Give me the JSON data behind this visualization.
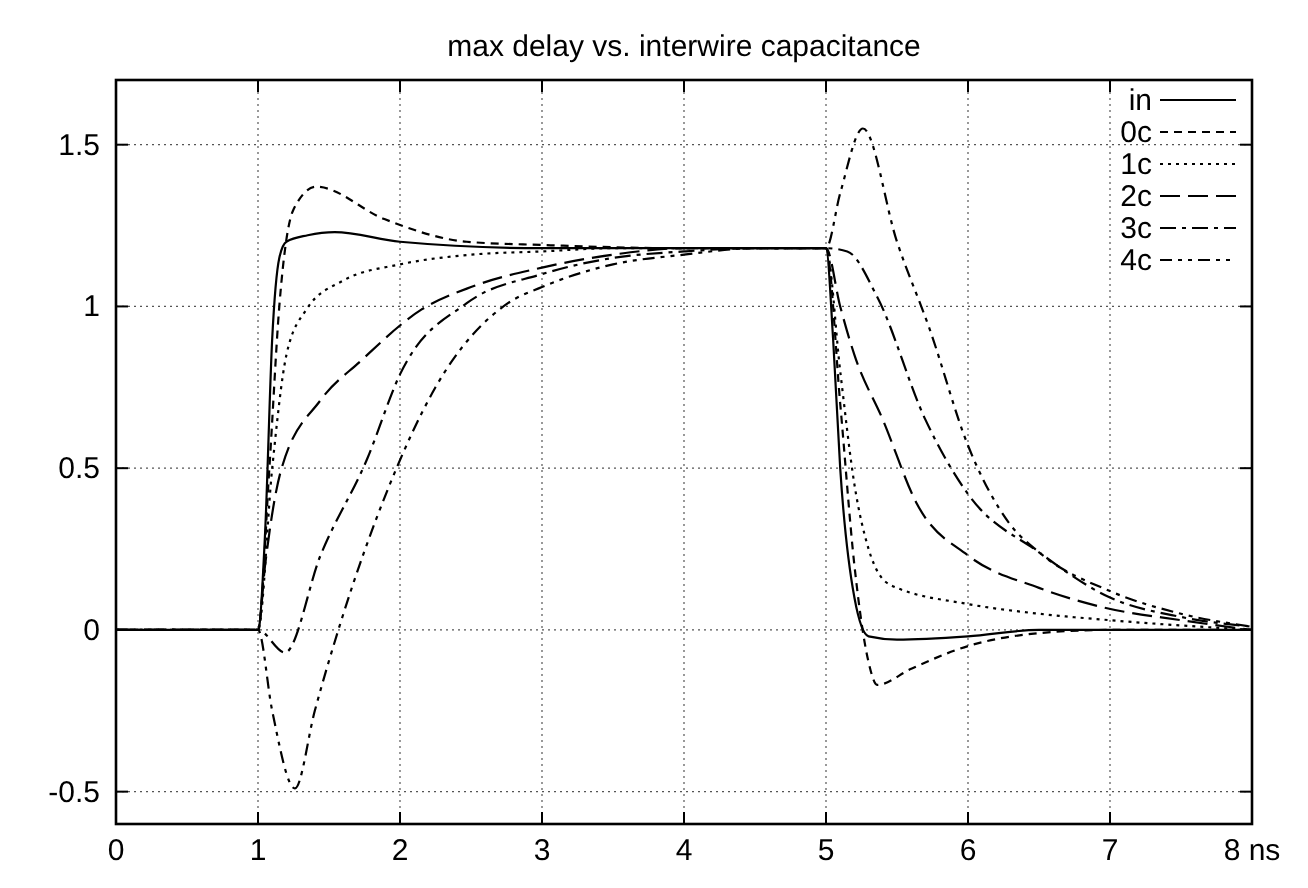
{
  "chart_data": {
    "type": "line",
    "title": "max delay vs. interwire capacitance",
    "xlim": [
      0,
      8
    ],
    "ylim": [
      -0.6,
      1.7
    ],
    "xticks": [
      0,
      1,
      2,
      3,
      4,
      5,
      6,
      7,
      {
        "value": 8,
        "label": "8 ns"
      }
    ],
    "yticks": [
      -0.5,
      0,
      0.5,
      1,
      1.5
    ],
    "grid": true,
    "legend": "top right",
    "series": [
      {
        "name": "in",
        "color": "#000000",
        "line_style": "solid",
        "x": [
          0,
          1,
          1.05,
          1.1,
          1.15,
          1.2,
          1.35,
          1.54,
          2,
          3,
          4,
          5,
          5.05,
          5.1,
          5.2,
          5.3,
          5.5,
          6,
          6.5,
          7,
          8
        ],
        "values": [
          0,
          0,
          0.3,
          0.9,
          1.15,
          1.2,
          1.22,
          1.23,
          1.2,
          1.18,
          1.18,
          1.18,
          0.9,
          0.5,
          0.1,
          -0.02,
          -0.03,
          -0.02,
          0,
          0,
          0
        ]
      },
      {
        "name": "0c",
        "color": "#000000",
        "line_style": "dashed",
        "x": [
          0,
          1,
          1.08,
          1.15,
          1.25,
          1.41,
          1.89,
          2.47,
          3,
          4,
          5,
          5.1,
          5.2,
          5.3,
          5.36,
          5.6,
          6,
          6.5,
          7,
          8
        ],
        "values": [
          0,
          0,
          0.5,
          1.0,
          1.3,
          1.37,
          1.27,
          1.2,
          1.19,
          1.18,
          1.18,
          0.7,
          0.2,
          -0.1,
          -0.17,
          -0.12,
          -0.05,
          -0.01,
          0,
          0
        ]
      },
      {
        "name": "1c",
        "color": "#000000",
        "line_style": "dotted",
        "x": [
          0,
          1,
          1.1,
          1.2,
          1.34,
          1.6,
          2,
          2.5,
          3,
          3.5,
          4,
          5,
          5.1,
          5.2,
          5.3,
          5.45,
          6,
          6.5,
          7,
          8
        ],
        "values": [
          0,
          0,
          0.5,
          0.85,
          0.99,
          1.08,
          1.13,
          1.16,
          1.17,
          1.18,
          1.18,
          1.18,
          0.8,
          0.45,
          0.25,
          0.14,
          0.08,
          0.05,
          0.03,
          0
        ]
      },
      {
        "name": "2c",
        "color": "#000000",
        "line_style": "dashed",
        "x": [
          0,
          1,
          1.05,
          1.16,
          1.44,
          1.72,
          2.15,
          2.5,
          3,
          3.5,
          4,
          5,
          5.1,
          5.2,
          5.4,
          5.64,
          6,
          6.5,
          6.95,
          7.5,
          8
        ],
        "values": [
          0,
          0,
          0.2,
          0.49,
          0.71,
          0.83,
          0.99,
          1.06,
          1.12,
          1.16,
          1.18,
          1.18,
          1.0,
          0.85,
          0.65,
          0.39,
          0.23,
          0.13,
          0.07,
          0.03,
          0
        ]
      },
      {
        "name": "3c",
        "color": "#000000",
        "line_style": "dashed",
        "x": [
          0,
          1,
          1.19,
          1.44,
          1.77,
          2,
          2.47,
          3,
          3.5,
          4,
          4.5,
          5,
          5.15,
          5.36,
          5.7,
          6,
          6.5,
          7,
          7.5,
          8
        ],
        "values": [
          0,
          0,
          -0.07,
          0.23,
          0.53,
          0.79,
          1.01,
          1.1,
          1.15,
          1.17,
          1.18,
          1.18,
          1.17,
          1.03,
          0.65,
          0.42,
          0.24,
          0.1,
          0.04,
          0.01
        ]
      },
      {
        "name": "4c",
        "color": "#000000",
        "line_style": "dashed",
        "x": [
          0,
          1,
          1.1,
          1.26,
          1.4,
          1.58,
          1.91,
          2.25,
          2.76,
          3,
          3.5,
          4,
          4.5,
          5,
          5.1,
          5.26,
          5.5,
          5.73,
          6,
          6.29,
          6.5,
          7,
          7.5,
          8
        ],
        "values": [
          0,
          0,
          -0.25,
          -0.49,
          -0.25,
          0.02,
          0.43,
          0.75,
          1.01,
          1.06,
          1.13,
          1.16,
          1.18,
          1.18,
          1.35,
          1.55,
          1.2,
          0.93,
          0.57,
          0.33,
          0.24,
          0.12,
          0.05,
          0.01
        ]
      }
    ]
  }
}
